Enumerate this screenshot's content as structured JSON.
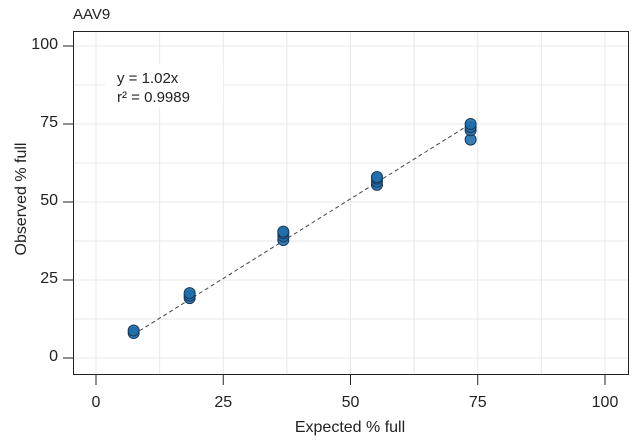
{
  "chart_data": {
    "type": "scatter",
    "title": "AAV9",
    "xlabel": "Expected % full",
    "ylabel": "Observed % full",
    "xlim": [
      -5,
      105
    ],
    "ylim": [
      -5,
      105
    ],
    "xticks": [
      "0",
      "25",
      "50",
      "75",
      "100"
    ],
    "yticks": [
      "0",
      "25",
      "50",
      "75",
      "100"
    ],
    "grid": true,
    "annotation": {
      "line1": "y = 1.02x",
      "line2": "r² = 0.9989"
    },
    "fit": {
      "slope": 1.02,
      "r2": 0.9989,
      "style": "dashed"
    },
    "series": [
      {
        "name": "AAV9",
        "color": "#1f6fae",
        "x": [
          7.4,
          7.4,
          18.4,
          18.4,
          18.4,
          36.8,
          36.8,
          36.8,
          36.8,
          55.2,
          55.2,
          55.2,
          55.2,
          73.6,
          73.6,
          73.6,
          73.6
        ],
        "y": [
          8.0,
          8.8,
          19.2,
          20.0,
          20.8,
          37.8,
          39.0,
          40.0,
          40.5,
          55.5,
          56.5,
          57.5,
          58.0,
          70.0,
          73.0,
          74.0,
          75.0
        ]
      }
    ]
  }
}
